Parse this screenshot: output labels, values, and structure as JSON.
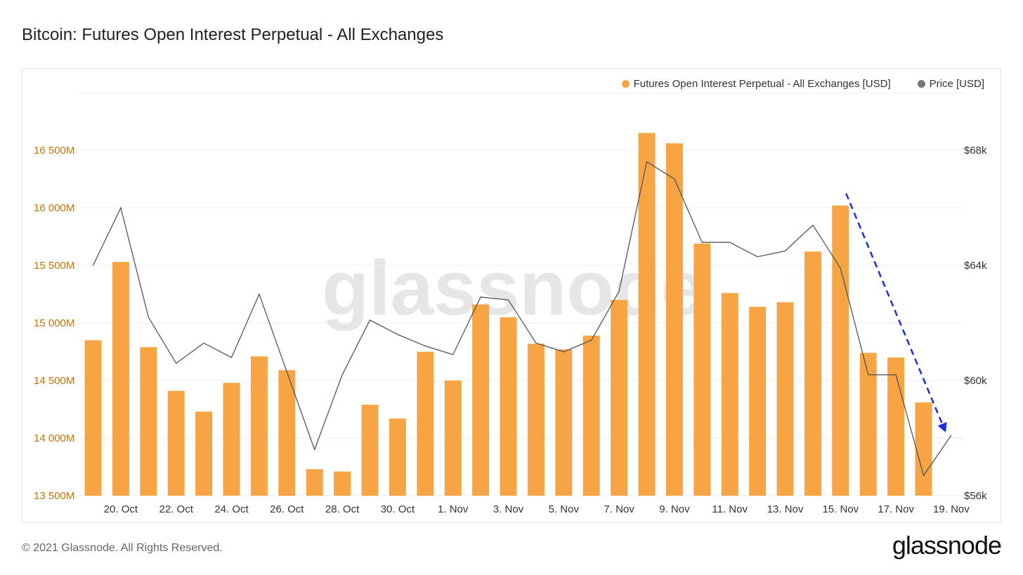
{
  "title": "Bitcoin: Futures Open Interest Perpetual - All Exchanges",
  "footer": "© 2021 Glassnode. All Rights Reserved.",
  "logo": "glassnode",
  "watermark": "glassnode",
  "colors": {
    "bars": "#f7a445",
    "price": "#555555",
    "arrow": "#1a2ee8",
    "left_axis": "#c9720e",
    "right_axis": "#333333"
  },
  "chart_data": {
    "type": "bar",
    "series": [
      {
        "name": "Futures Open Interest Perpetual - All Exchanges [USD]",
        "type": "bar",
        "axis": "left",
        "color": "#f7a445",
        "values": [
          14850,
          15530,
          14790,
          14410,
          14230,
          14480,
          14710,
          14590,
          13730,
          13710,
          14290,
          14170,
          14750,
          14500,
          15160,
          15050,
          14820,
          14770,
          14890,
          15200,
          16650,
          16560,
          15690,
          15260,
          15140,
          15180,
          15620,
          16020,
          14740,
          14700,
          14310
        ]
      },
      {
        "name": "Price [USD]",
        "type": "line",
        "axis": "right",
        "color": "#555555",
        "values": [
          64.0,
          66.0,
          62.2,
          60.6,
          61.3,
          60.8,
          63.0,
          60.3,
          57.6,
          60.2,
          62.1,
          61.6,
          61.2,
          60.9,
          62.9,
          62.8,
          61.3,
          61.0,
          61.4,
          63.1,
          67.6,
          67.0,
          64.8,
          64.8,
          64.3,
          64.5,
          65.4,
          63.9,
          60.2,
          60.2,
          56.7,
          58.1
        ]
      }
    ],
    "x_tick_labels": [
      "20. Oct",
      "22. Oct",
      "24. Oct",
      "26. Oct",
      "28. Oct",
      "30. Oct",
      "1. Nov",
      "3. Nov",
      "5. Nov",
      "7. Nov",
      "9. Nov",
      "11. Nov",
      "13. Nov",
      "15. Nov",
      "17. Nov",
      "19. Nov"
    ],
    "left_axis": {
      "ticks": [
        13500,
        14000,
        14500,
        15000,
        15500,
        16000,
        16500
      ],
      "labels": [
        "13 500M",
        "14 000M",
        "14 500M",
        "15 000M",
        "15 500M",
        "16 000M",
        "16 500M"
      ],
      "range": [
        13500,
        17000
      ]
    },
    "right_axis": {
      "ticks": [
        56,
        60,
        64,
        68
      ],
      "labels": [
        "$56k",
        "$60k",
        "$64k",
        "$68k"
      ],
      "range": [
        56,
        70
      ]
    },
    "annotation": {
      "type": "dashed-arrow",
      "from": {
        "index": 27.2,
        "price": 66.5
      },
      "to": {
        "index": 30.8,
        "price": 58.2
      }
    },
    "grid": true,
    "legend_position": "top-right"
  }
}
